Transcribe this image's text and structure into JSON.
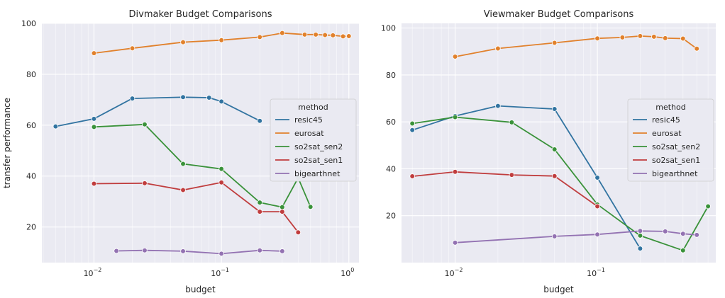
{
  "chart_data": [
    {
      "type": "line",
      "title": "Divmaker Budget Comparisons",
      "xlabel": "budget",
      "ylabel": "transfer performance",
      "xscale": "log",
      "xlim": [
        0.0039,
        1.2
      ],
      "ylim": [
        6,
        100
      ],
      "yticks": [
        20,
        40,
        60,
        80,
        100
      ],
      "xticks": [
        {
          "value": 0.01,
          "base": "10",
          "exp": "−2"
        },
        {
          "value": 0.1,
          "base": "10",
          "exp": "−1"
        },
        {
          "value": 1,
          "base": "10",
          "exp": "0"
        }
      ],
      "grid": true,
      "legend": {
        "title": "method",
        "position": "center-right"
      },
      "series": [
        {
          "name": "resic45",
          "color": "#3274a1",
          "x": [
            0.005,
            0.01,
            0.02,
            0.05,
            0.08,
            0.1,
            0.2
          ],
          "y": [
            59.5,
            62.5,
            70.5,
            71,
            70.8,
            69.3,
            61.7
          ]
        },
        {
          "name": "eurosat",
          "color": "#e1812c",
          "x": [
            0.01,
            0.02,
            0.05,
            0.1,
            0.2,
            0.3,
            0.45,
            0.55,
            0.65,
            0.75,
            0.9,
            1.0
          ],
          "y": [
            88.3,
            90.2,
            92.6,
            93.4,
            94.6,
            96.2,
            95.6,
            95.6,
            95.4,
            95.3,
            94.9,
            95.0
          ]
        },
        {
          "name": "so2sat_sen2",
          "color": "#3a923a",
          "x": [
            0.01,
            0.025,
            0.05,
            0.1,
            0.2,
            0.3,
            0.4,
            0.5
          ],
          "y": [
            59.3,
            60.3,
            44.8,
            42.8,
            29.6,
            27.8,
            39.3,
            27.9
          ]
        },
        {
          "name": "so2sat_sen1",
          "color": "#c03d3e",
          "x": [
            0.01,
            0.025,
            0.05,
            0.1,
            0.2,
            0.3,
            0.4
          ],
          "y": [
            37,
            37.2,
            34.5,
            37.5,
            26,
            26,
            17.9
          ]
        },
        {
          "name": "bigearthnet",
          "color": "#9372b2",
          "x": [
            0.015,
            0.025,
            0.05,
            0.1,
            0.2,
            0.3
          ],
          "y": [
            10.6,
            10.8,
            10.5,
            9.5,
            10.8,
            10.5
          ]
        }
      ]
    },
    {
      "type": "line",
      "title": "Viewmaker Budget Comparisons",
      "xlabel": "budget",
      "ylabel": "",
      "xscale": "log",
      "xlim": [
        0.0042,
        0.68
      ],
      "ylim": [
        0,
        102
      ],
      "yticks": [
        20,
        40,
        60,
        80,
        100
      ],
      "xticks": [
        {
          "value": 0.01,
          "base": "10",
          "exp": "−2"
        },
        {
          "value": 0.1,
          "base": "10",
          "exp": "−1"
        }
      ],
      "grid": true,
      "legend": {
        "title": "method",
        "position": "center-right"
      },
      "series": [
        {
          "name": "resic45",
          "color": "#3274a1",
          "x": [
            0.005,
            0.01,
            0.02,
            0.05,
            0.1,
            0.2
          ],
          "y": [
            56.5,
            62.5,
            66.8,
            65.5,
            36.2,
            6.0
          ]
        },
        {
          "name": "eurosat",
          "color": "#e1812c",
          "x": [
            0.01,
            0.02,
            0.05,
            0.1,
            0.15,
            0.2,
            0.25,
            0.3,
            0.4,
            0.5
          ],
          "y": [
            87.8,
            91.3,
            93.7,
            95.6,
            96.0,
            96.6,
            96.3,
            95.7,
            95.5,
            91.2
          ]
        },
        {
          "name": "so2sat_sen2",
          "color": "#3a923a",
          "x": [
            0.005,
            0.01,
            0.025,
            0.05,
            0.1,
            0.2,
            0.4,
            0.6
          ],
          "y": [
            59.3,
            62.0,
            59.8,
            48.3,
            24.8,
            11.5,
            5.2,
            24.0
          ]
        },
        {
          "name": "so2sat_sen1",
          "color": "#c03d3e",
          "x": [
            0.005,
            0.01,
            0.025,
            0.05,
            0.1
          ],
          "y": [
            36.8,
            38.7,
            37.4,
            36.9,
            24.0
          ]
        },
        {
          "name": "bigearthnet",
          "color": "#9372b2",
          "x": [
            0.01,
            0.05,
            0.1,
            0.2,
            0.3,
            0.4,
            0.5
          ],
          "y": [
            8.5,
            11.2,
            12.0,
            13.5,
            13.3,
            12.3,
            11.8
          ]
        }
      ]
    }
  ]
}
